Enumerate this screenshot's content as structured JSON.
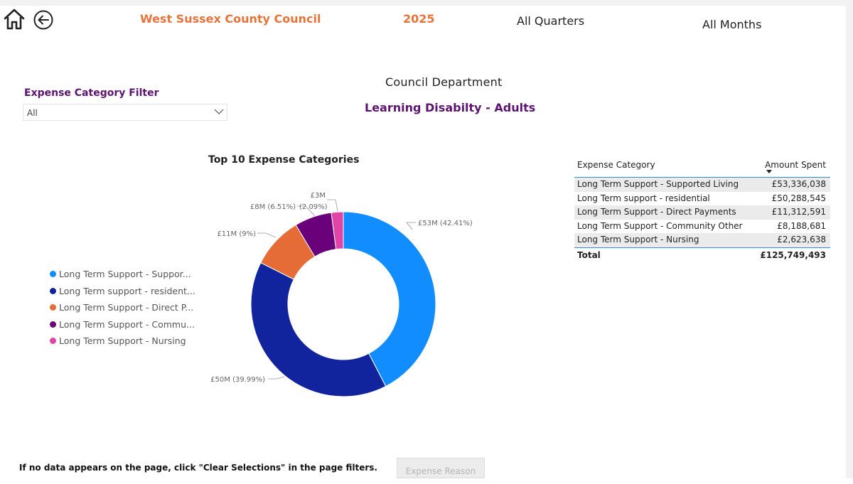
{
  "header": {
    "organization": "West Sussex County Council",
    "year": "2025",
    "quarter_filter": "All Quarters",
    "month_filter": "All Months"
  },
  "nav": {
    "home_icon": "home-icon",
    "back_icon": "back-arrow-circle-icon"
  },
  "filter": {
    "label": "Expense Category Filter",
    "value": "All",
    "chevron_icon": "chevron-down-icon"
  },
  "department": {
    "caption": "Council Department",
    "name": "Learning Disabilty - Adults"
  },
  "chart_data": {
    "type": "pie",
    "title": "Top 10 Expense Categories",
    "labels": [
      "Long Term Support - Supported Living",
      "Long Term support - residential",
      "Long Term Support - Direct Payments",
      "Long Term Support - Community Other",
      "Long Term Support - Nursing"
    ],
    "values": [
      53336038,
      50288545,
      11312591,
      8188681,
      2623638
    ],
    "data_labels": [
      "£53M (42.41%)",
      "£50M (39.99%)",
      "£11M (9%)",
      "£8M (6.51%)",
      "£3M"
    ],
    "extra_label": "(2.09%)",
    "colors": [
      "#118dff",
      "#12239e",
      "#e66c37",
      "#6b007b",
      "#e044a7"
    ]
  },
  "legend": {
    "items": [
      {
        "label": "Long Term Support - Suppor...",
        "color": "#118dff"
      },
      {
        "label": "Long Term support - resident...",
        "color": "#12239e"
      },
      {
        "label": "Long Term Support - Direct P...",
        "color": "#e66c37"
      },
      {
        "label": "Long Term Support - Commu...",
        "color": "#6b007b"
      },
      {
        "label": "Long Term Support - Nursing",
        "color": "#e044a7"
      }
    ]
  },
  "table": {
    "headers": {
      "category": "Expense Category",
      "amount": "Amount Spent"
    },
    "rows": [
      {
        "category": "Long Term Support - Supported Living",
        "amount": "£53,336,038"
      },
      {
        "category": "Long Term support - residential",
        "amount": "£50,288,545"
      },
      {
        "category": "Long Term Support - Direct Payments",
        "amount": "£11,312,591"
      },
      {
        "category": "Long Term Support - Community Other",
        "amount": "£8,188,681"
      },
      {
        "category": "Long Term Support - Nursing",
        "amount": "£2,623,638"
      }
    ],
    "total_label": "Total",
    "total_amount": "£125,749,493"
  },
  "footer": {
    "note": "If no data appears on the page, click \"Clear Selections\" in the page filters.",
    "button_label": "Expense Reason"
  }
}
